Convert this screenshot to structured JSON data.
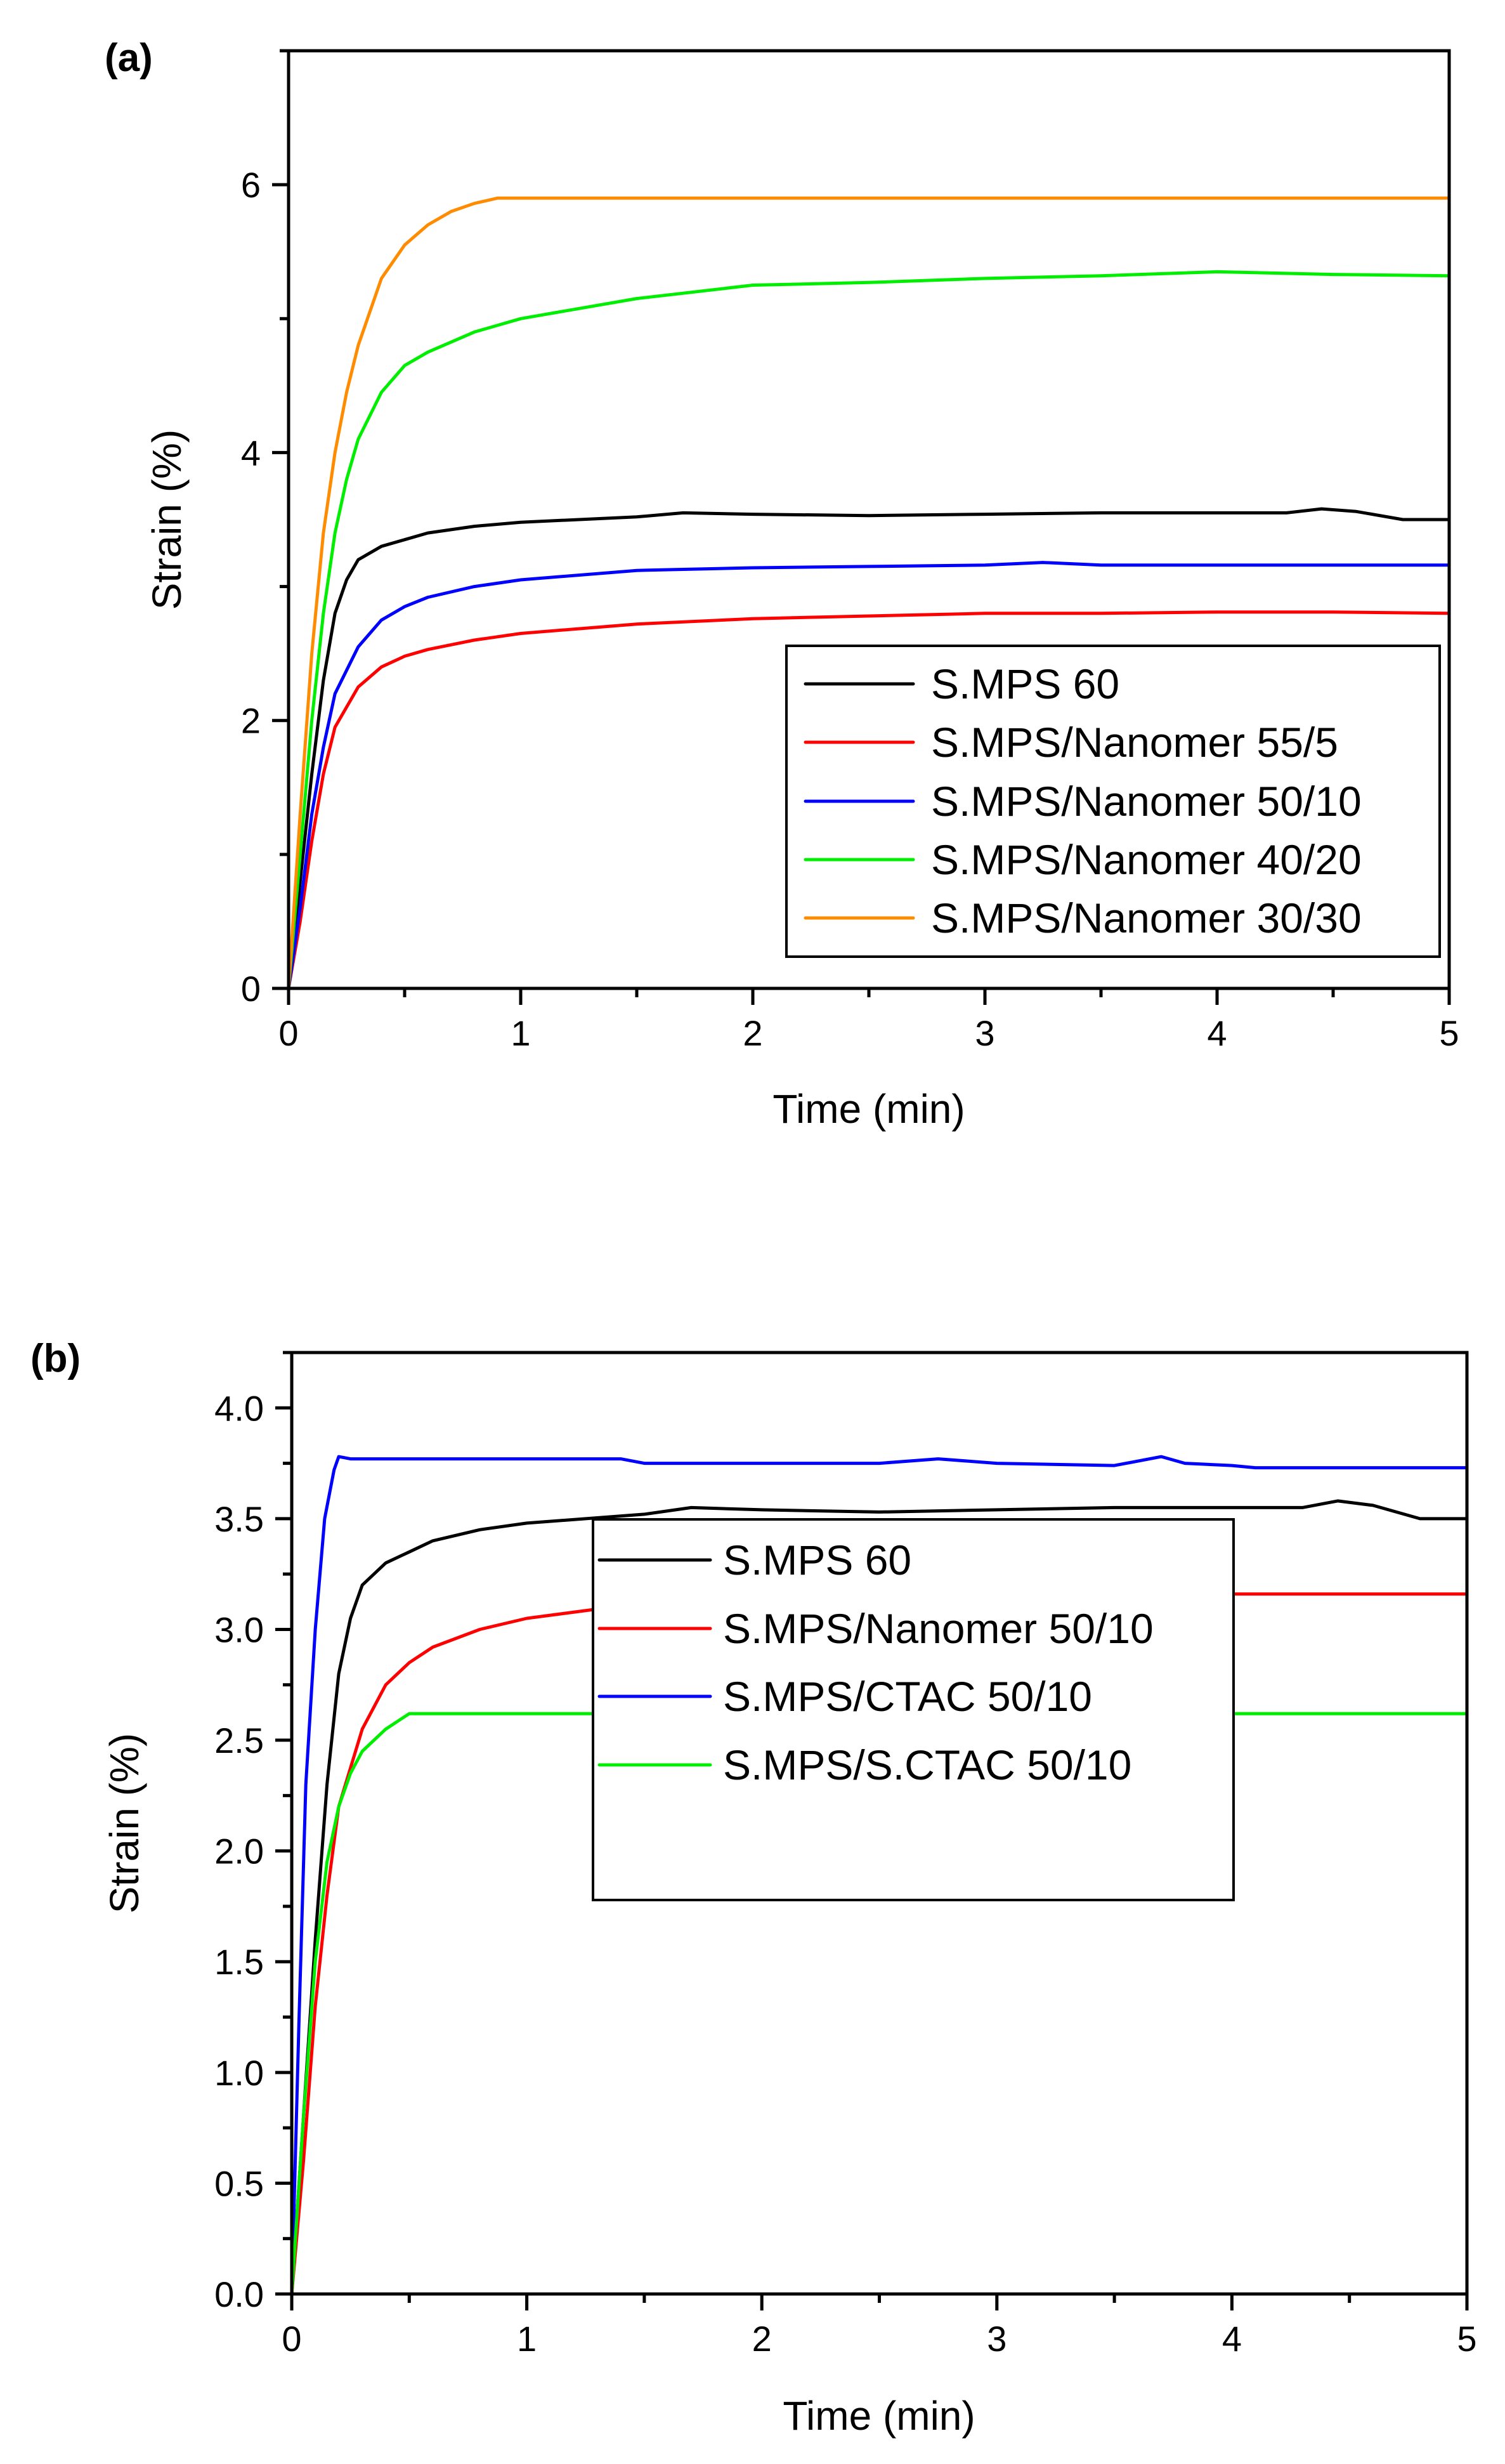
{
  "chart_data": [
    {
      "type": "line",
      "panel_label": "(a)",
      "xlabel": "Time (min)",
      "ylabel": "Strain (%)",
      "xlim": [
        0,
        5
      ],
      "ylim": [
        0,
        7.0
      ],
      "x_ticks": [
        0,
        1,
        2,
        3,
        4,
        5
      ],
      "x_tick_labels": [
        "0",
        "1",
        "2",
        "3",
        "4",
        "5"
      ],
      "y_ticks": [
        0,
        2,
        4,
        6
      ],
      "y_tick_labels": [
        "0",
        "2",
        "4",
        "6"
      ],
      "grid": false,
      "legend_position": "lower-right",
      "series": [
        {
          "name": "S.MPS 60",
          "color": "#000000",
          "x": [
            0,
            0.05,
            0.1,
            0.15,
            0.2,
            0.25,
            0.3,
            0.4,
            0.5,
            0.6,
            0.8,
            1.0,
            1.5,
            1.7,
            2.0,
            2.5,
            3.0,
            3.5,
            4.0,
            4.3,
            4.45,
            4.6,
            4.8,
            5.0
          ],
          "y": [
            0,
            0.8,
            1.6,
            2.3,
            2.8,
            3.05,
            3.2,
            3.3,
            3.35,
            3.4,
            3.45,
            3.48,
            3.52,
            3.55,
            3.54,
            3.53,
            3.54,
            3.55,
            3.55,
            3.55,
            3.58,
            3.56,
            3.5,
            3.5
          ]
        },
        {
          "name": "S.MPS/Nanomer 55/5",
          "color": "#ff0000",
          "x": [
            0,
            0.05,
            0.1,
            0.15,
            0.2,
            0.3,
            0.4,
            0.5,
            0.6,
            0.8,
            1.0,
            1.5,
            2.0,
            2.5,
            3.0,
            3.5,
            4.0,
            4.5,
            5.0
          ],
          "y": [
            0,
            0.5,
            1.1,
            1.6,
            1.95,
            2.25,
            2.4,
            2.48,
            2.53,
            2.6,
            2.65,
            2.72,
            2.76,
            2.78,
            2.8,
            2.8,
            2.81,
            2.81,
            2.8
          ]
        },
        {
          "name": "S.MPS/Nanomer 50/10",
          "color": "#0000ff",
          "x": [
            0,
            0.05,
            0.1,
            0.15,
            0.2,
            0.3,
            0.4,
            0.5,
            0.6,
            0.8,
            1.0,
            1.5,
            2.0,
            2.5,
            3.0,
            3.25,
            3.5,
            4.0,
            4.5,
            5.0
          ],
          "y": [
            0,
            0.6,
            1.3,
            1.8,
            2.2,
            2.55,
            2.75,
            2.85,
            2.92,
            3.0,
            3.05,
            3.12,
            3.14,
            3.15,
            3.16,
            3.18,
            3.16,
            3.16,
            3.16,
            3.16
          ]
        },
        {
          "name": "S.MPS/Nanomer 40/20",
          "color": "#00ee00",
          "x": [
            0,
            0.05,
            0.1,
            0.15,
            0.2,
            0.25,
            0.3,
            0.4,
            0.5,
            0.6,
            0.8,
            1.0,
            1.5,
            2.0,
            2.5,
            3.0,
            3.5,
            4.0,
            4.5,
            5.0
          ],
          "y": [
            0,
            1.0,
            2.0,
            2.8,
            3.4,
            3.8,
            4.1,
            4.45,
            4.65,
            4.75,
            4.9,
            5.0,
            5.15,
            5.25,
            5.27,
            5.3,
            5.32,
            5.35,
            5.33,
            5.32
          ]
        },
        {
          "name": "S.MPS/Nanomer 30/30",
          "color": "#ff8c00",
          "x": [
            0,
            0.05,
            0.1,
            0.15,
            0.2,
            0.25,
            0.3,
            0.4,
            0.5,
            0.6,
            0.7,
            0.8,
            0.9,
            1.5,
            2.0,
            3.0,
            4.0,
            5.0
          ],
          "y": [
            0,
            1.3,
            2.5,
            3.4,
            4.0,
            4.45,
            4.8,
            5.3,
            5.55,
            5.7,
            5.8,
            5.86,
            5.9,
            5.9,
            5.9,
            5.9,
            5.9,
            5.9
          ]
        }
      ]
    },
    {
      "type": "line",
      "panel_label": "(b)",
      "xlabel": "Time (min)",
      "ylabel": "Strain (%)",
      "xlim": [
        0,
        5
      ],
      "ylim": [
        0,
        4.25
      ],
      "x_ticks": [
        0,
        1,
        2,
        3,
        4,
        5
      ],
      "x_tick_labels": [
        "0",
        "1",
        "2",
        "3",
        "4",
        "5"
      ],
      "y_ticks": [
        0,
        0.5,
        1.0,
        1.5,
        2.0,
        2.5,
        3.0,
        3.5,
        4.0
      ],
      "y_tick_labels": [
        "0.0",
        "0.5",
        "1.0",
        "1.5",
        "2.0",
        "2.5",
        "3.0",
        "3.5",
        "4.0"
      ],
      "grid": false,
      "legend_position": "center",
      "series": [
        {
          "name": "S.MPS 60",
          "color": "#000000",
          "x": [
            0,
            0.05,
            0.1,
            0.15,
            0.2,
            0.25,
            0.3,
            0.4,
            0.5,
            0.6,
            0.8,
            1.0,
            1.5,
            1.7,
            2.0,
            2.5,
            3.0,
            3.5,
            4.0,
            4.3,
            4.45,
            4.6,
            4.8,
            5.0
          ],
          "y": [
            0,
            0.8,
            1.6,
            2.3,
            2.8,
            3.05,
            3.2,
            3.3,
            3.35,
            3.4,
            3.45,
            3.48,
            3.52,
            3.55,
            3.54,
            3.53,
            3.54,
            3.55,
            3.55,
            3.55,
            3.58,
            3.56,
            3.5,
            3.5
          ]
        },
        {
          "name": "S.MPS/Nanomer 50/10",
          "color": "#ff0000",
          "x": [
            0,
            0.05,
            0.1,
            0.15,
            0.2,
            0.3,
            0.4,
            0.5,
            0.6,
            0.8,
            1.0,
            1.5,
            2.0,
            2.5,
            3.0,
            3.25,
            3.5,
            4.0,
            4.5,
            5.0
          ],
          "y": [
            0,
            0.6,
            1.3,
            1.8,
            2.2,
            2.55,
            2.75,
            2.85,
            2.92,
            3.0,
            3.05,
            3.12,
            3.14,
            3.15,
            3.16,
            3.18,
            3.16,
            3.16,
            3.16,
            3.16
          ]
        },
        {
          "name": "S.MPS/CTAC 50/10",
          "color": "#0000ff",
          "x": [
            0,
            0.03,
            0.06,
            0.1,
            0.14,
            0.18,
            0.2,
            0.25,
            0.4,
            1.0,
            1.4,
            1.5,
            2.0,
            2.5,
            2.75,
            3.0,
            3.5,
            3.7,
            3.8,
            4.0,
            4.1,
            4.5,
            5.0
          ],
          "y": [
            0,
            1.2,
            2.3,
            3.0,
            3.5,
            3.72,
            3.78,
            3.77,
            3.77,
            3.77,
            3.77,
            3.75,
            3.75,
            3.75,
            3.77,
            3.75,
            3.74,
            3.78,
            3.75,
            3.74,
            3.73,
            3.73,
            3.73
          ]
        },
        {
          "name": "S.MPS/S.CTAC 50/10",
          "color": "#00ee00",
          "x": [
            0,
            0.05,
            0.1,
            0.15,
            0.2,
            0.25,
            0.3,
            0.4,
            0.5,
            0.6,
            0.8,
            1.0,
            2.0,
            3.0,
            4.0,
            5.0
          ],
          "y": [
            0,
            0.8,
            1.5,
            1.95,
            2.2,
            2.35,
            2.45,
            2.55,
            2.62,
            2.62,
            2.62,
            2.62,
            2.62,
            2.62,
            2.62,
            2.62
          ]
        }
      ]
    }
  ]
}
